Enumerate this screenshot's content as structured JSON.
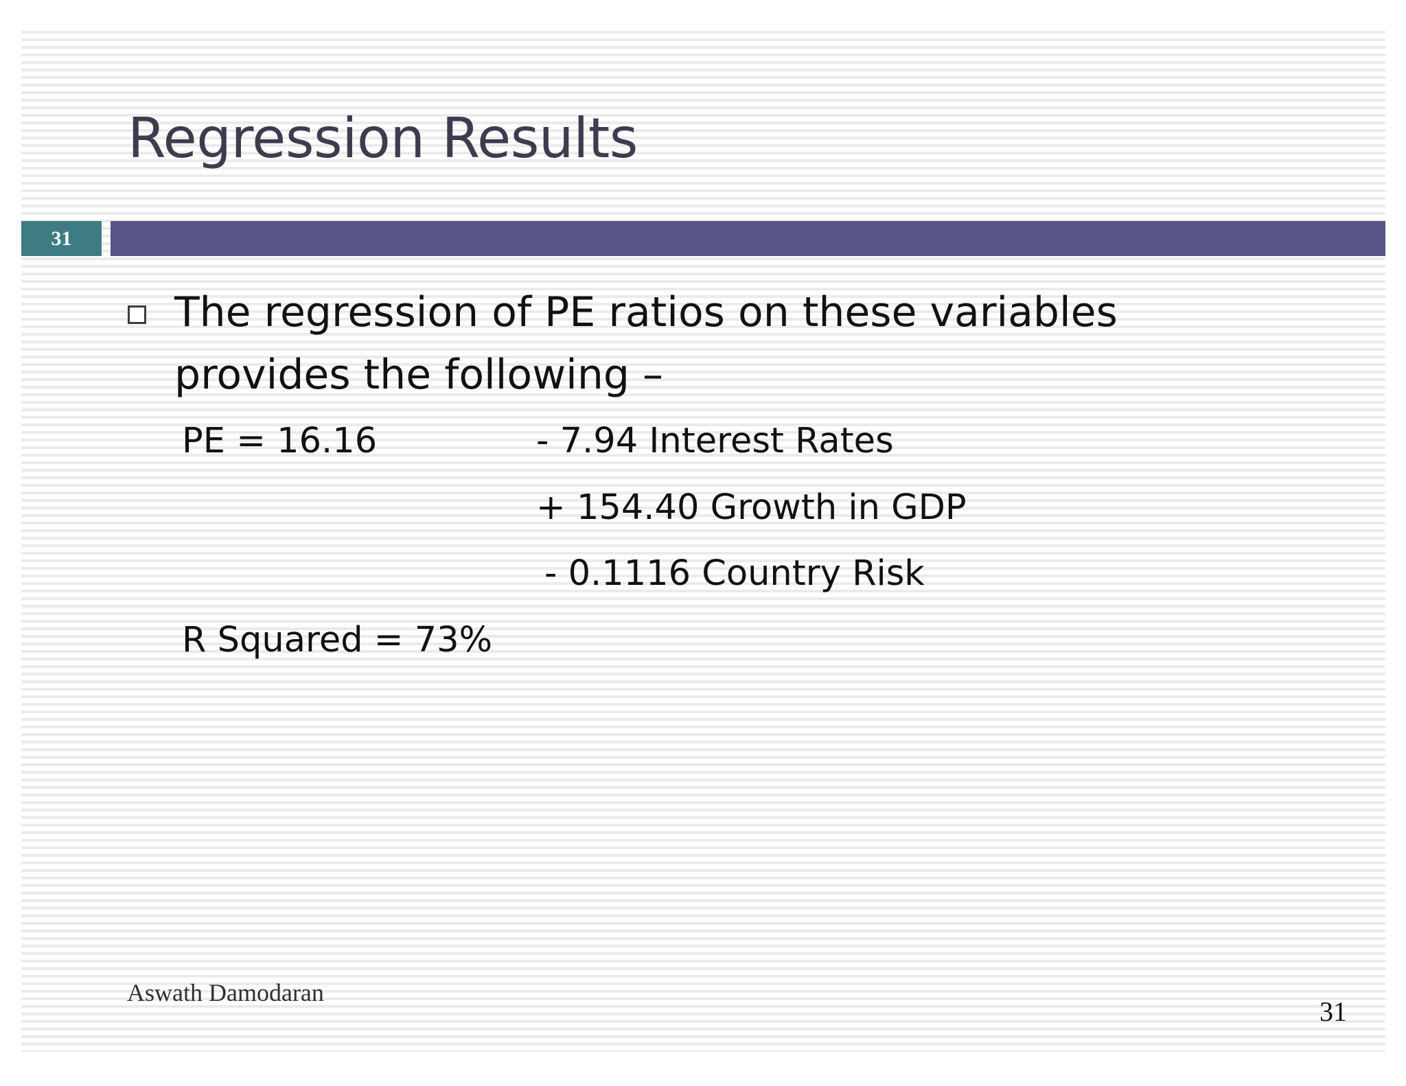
{
  "slide": {
    "title": "Regression Results",
    "slide_number_badge": "31",
    "bullet": {
      "icon": "hollow-square-bullet-icon",
      "text": "The regression of PE ratios on these variables provides the following –"
    },
    "equation": {
      "lhs": "PE = 16.16",
      "terms": [
        "- 7.94 Interest Rates",
        "+ 154.40 Growth in GDP",
        "- 0.1116 Country Risk"
      ],
      "r_squared": "R Squared = 73%"
    },
    "footer": {
      "author": "Aswath Damodaran",
      "page_number": "31"
    },
    "colors": {
      "title_text": "#3d3c4f",
      "badge_background": "#3e7c83",
      "title_bar": "#575487",
      "stripe": "#ebebeb"
    }
  }
}
